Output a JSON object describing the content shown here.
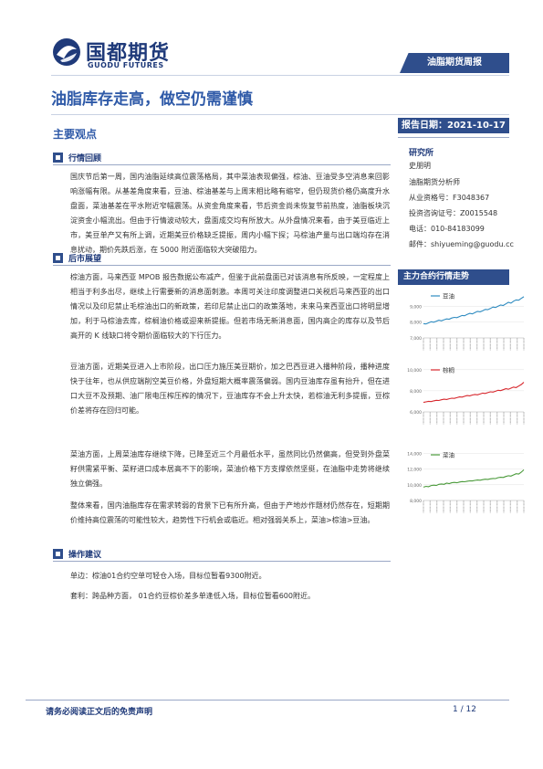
{
  "header": {
    "logo_cn": "国都期货",
    "logo_en": "GUODU FUTURES",
    "tag": "油脂期货周报",
    "colors": {
      "brand": "#1f3a7a",
      "accent": "#2f4e8c",
      "title": "#2f5aa8"
    }
  },
  "title": "油脂库存走高，做空仍需谨慎",
  "section": "主要观点",
  "report_date": "报告日期：2021-10-17",
  "blocks": [
    {
      "heading": "行情回顾",
      "paragraphs": [
        "国庆节后第一周，国内油脂延续高位震荡格局，其中菜油表现偏强，棕油、豆油受多空消息来回影响涨幅有限。从基差角度来看，豆油、棕油基差与上周末相比略有缩窄，但仍现货价格仍高度升水盘面，菜油基差在平水附近窄幅震荡。从资金角度来看，节后资金尚未恢复节前热度，油脂板块沉淀资金小幅流出。但由于行情波动较大，盘面成交均有所放大。从外盘情况来看，由于美豆临近上市，美豆单产又有所上调，近期美豆价格缺乏提振，周内小幅下探；马棕油产量与出口端均存在消息扰动，期价先跌后涨，在 5000 附近面临较大突破阻力。"
      ]
    },
    {
      "heading": "后市展望",
      "paragraphs": [
        "棕油方面，马来西亚 MPOB 报告数据公布减产，但鉴于此前盘面已对该消息有所反映，一定程度上相当于利多出尽，继续上行需要新的消息面刺激。本周可关注印度调整进口关税后马来西亚的出口情况以及印尼禁止毛棕油出口的新政策，若印尼禁止出口的政策落地，未来马来西亚出口将明显增加，利于马棕油去库，棕榈油价格或迎来新提振。但若市场无新消息面，国内高企的库存以及节后高开的 K 线缺口将令期价面临较大的下行压力。",
        "豆油方面，近期美豆进入上市阶段，出口压力施压美豆期价，加之巴西豆进入播种阶段，播种进度快于往年，也从供应端削空美豆价格，外盘短期大概率震荡偏弱。国内豆油库存虽有抬升，但在进口大豆不及预期、油厂限电压榨压榨的情况下，豆油库存不会上升太快，若棕油无利多提振，豆棕价差将存在回归可能。",
        "菜油方面，上周菜油库存继续下降，已降至近三个月最低水平，虽然同比仍然偏高，但受到外盘菜籽供需紧平衡、菜籽进口成本居高不下的影响，菜油价格下方支撑依然坚挺，在油脂中走势将继续独立偏强。",
        "整体来看，国内油脂库存在需求转弱的背景下已有所升高，但由于产地炒作题材仍然存在，短期期价维持高位震荡的可能性较大，趋势性下行机会或临近。相对强弱关系上，菜油>棕油>豆油。"
      ]
    },
    {
      "heading": "操作建议",
      "paragraphs": [
        "单边：棕油01合约空单可轻仓入场，目标位暂看9300附近。",
        "套利：跨品种方面， 01合约豆棕价差多单逢低入场，目标位暂看600附近。"
      ]
    }
  ],
  "side": {
    "research_heading": "研究所",
    "analyst": "史朋明",
    "role": "油脂期货分析师",
    "qualification": "从业资格号：F3048367",
    "consulting": "投资咨询证号：Z0015548",
    "phone": "电话：010-84183099",
    "email": "邮件：shiyueming@guodu.cc",
    "chart_heading": "主力合约行情走势"
  },
  "chart_data": [
    {
      "type": "line",
      "series": [
        {
          "name": "豆油",
          "color": "#2e8bc0",
          "values": [
            7900,
            7880,
            7950,
            8020,
            7990,
            8050,
            8120,
            8080,
            8150,
            8200,
            8180,
            8260,
            8300,
            8280,
            8350,
            8420,
            8400,
            8480,
            8550,
            8520,
            8600,
            8680,
            8650,
            8720,
            8800,
            8780,
            8860,
            8950,
            8920,
            9000,
            9080,
            9050,
            9150,
            9250,
            9200,
            9320,
            9400,
            9380,
            9500,
            9600
          ]
        }
      ],
      "yticks": [
        7000,
        8000,
        9000
      ],
      "ylim": [
        7000,
        10000
      ]
    },
    {
      "type": "line",
      "series": [
        {
          "name": "棕榈",
          "color": "#d7262c",
          "values": [
            6900,
            6950,
            7000,
            6980,
            7050,
            7100,
            7080,
            7150,
            7200,
            7180,
            7250,
            7300,
            7280,
            7350,
            7420,
            7400,
            7480,
            7550,
            7520,
            7600,
            7650,
            7620,
            7700,
            7780,
            7750,
            7830,
            7900,
            7880,
            7960,
            8050,
            8020,
            8100,
            8200,
            8150,
            8250,
            8350,
            8300,
            8450,
            8600,
            8800
          ]
        }
      ],
      "yticks": [
        6000,
        8000,
        10000
      ],
      "ylim": [
        6000,
        10500
      ]
    },
    {
      "type": "line",
      "series": [
        {
          "name": "菜油",
          "color": "#4a9a3a",
          "values": [
            9700,
            9800,
            9750,
            9900,
            9950,
            9900,
            10050,
            10100,
            10050,
            10200,
            10150,
            10250,
            10300,
            10250,
            10350,
            10400,
            10380,
            10450,
            10500,
            10480,
            10550,
            10600,
            10580,
            10650,
            10700,
            10680,
            10750,
            10800,
            10780,
            10900,
            10950,
            10920,
            11050,
            11150,
            11100,
            11250,
            11400,
            11350,
            11600,
            11900
          ]
        }
      ],
      "yticks": [
        8000,
        10000,
        12000,
        14000
      ],
      "ylim": [
        8000,
        14500
      ]
    }
  ],
  "footer": {
    "disclaimer": "请务必阅读正文后的免责声明",
    "page": "1 / 12"
  }
}
